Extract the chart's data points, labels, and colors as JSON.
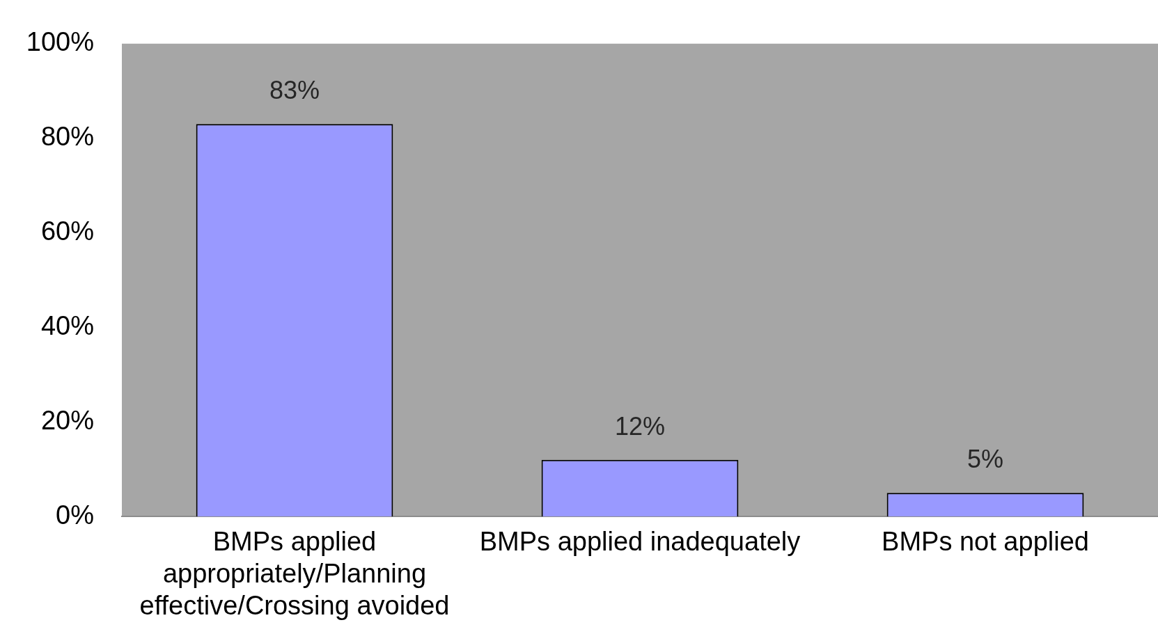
{
  "chart_data": {
    "type": "bar",
    "categories": [
      "BMPs applied appropriately/Planning effective/Crossing avoided",
      "BMPs applied inadequately",
      "BMPs not applied"
    ],
    "values": [
      83,
      12,
      5
    ],
    "color": "#9999ff",
    "value_labels": [
      "83%",
      "12%",
      "5%"
    ],
    "ylim": [
      0,
      100
    ],
    "yticks": [
      {
        "value": 0,
        "label": "0%"
      },
      {
        "value": 20,
        "label": "20%"
      },
      {
        "value": 40,
        "label": "40%"
      },
      {
        "value": 60,
        "label": "60%"
      },
      {
        "value": 80,
        "label": "80%"
      },
      {
        "value": 100,
        "label": "100%"
      }
    ],
    "grid": false,
    "legend": false
  }
}
